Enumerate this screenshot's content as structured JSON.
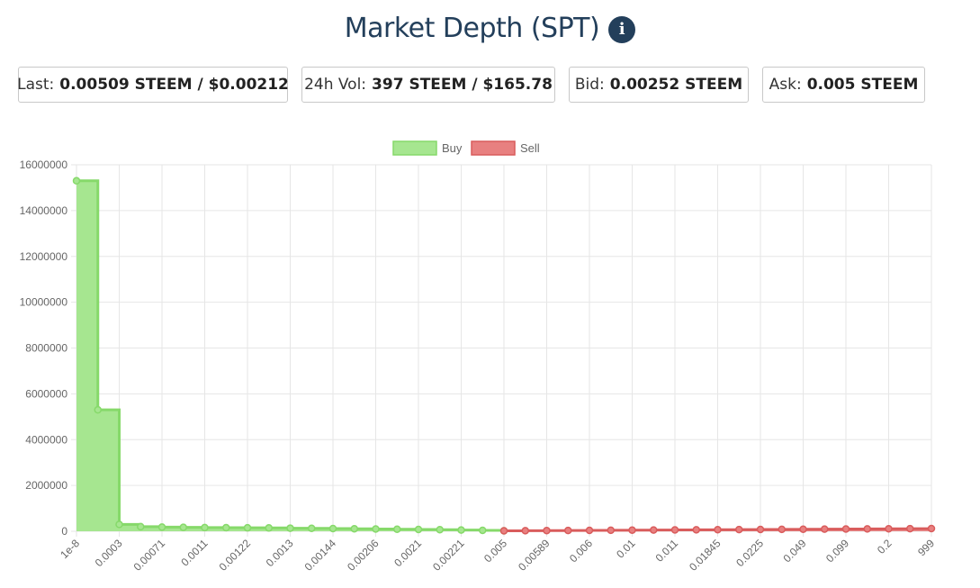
{
  "header": {
    "title": "Market Depth (SPT)",
    "info_icon": "info-icon"
  },
  "stats": {
    "last": {
      "label": "Last:",
      "value": "0.00509 STEEM / $0.00212"
    },
    "vol": {
      "label": "24h Vol:",
      "value": "397 STEEM / $165.78"
    },
    "bid": {
      "label": "Bid:",
      "value": "0.00252 STEEM"
    },
    "ask": {
      "label": "Ask:",
      "value": "0.005 STEEM"
    }
  },
  "colors": {
    "buy_fill": "#a6e690",
    "buy_line": "#86d96a",
    "sell_fill": "#e88080",
    "sell_line": "#d95c5c",
    "grid": "#e6e6e6",
    "axis_text": "#666666"
  },
  "chart_data": {
    "type": "area",
    "step": true,
    "legend_position": "top",
    "ylim": [
      0,
      16000000
    ],
    "yticks": [
      0,
      2000000,
      4000000,
      6000000,
      8000000,
      10000000,
      12000000,
      14000000,
      16000000
    ],
    "xtick_labels": [
      "1e-8",
      "0.0003",
      "0.00071",
      "0.0011",
      "0.00122",
      "0.0013",
      "0.00144",
      "0.00206",
      "0.0021",
      "0.00221",
      "0.005",
      "0.00589",
      "0.006",
      "0.01",
      "0.011",
      "0.01845",
      "0.0225",
      "0.049",
      "0.099",
      "0.2",
      "999"
    ],
    "num_points": 41,
    "series": [
      {
        "name": "Buy",
        "start_index": 0,
        "values": [
          15300000,
          5300000,
          300000,
          200000,
          180000,
          170000,
          160000,
          155000,
          150000,
          145000,
          135000,
          130000,
          120000,
          110000,
          100000,
          90000,
          80000,
          70000,
          55000,
          40000,
          20000
        ]
      },
      {
        "name": "Sell",
        "start_index": 20,
        "values": [
          20000,
          25000,
          30000,
          35000,
          40000,
          45000,
          50000,
          55000,
          60000,
          65000,
          70000,
          75000,
          80000,
          85000,
          90000,
          95000,
          100000,
          105000,
          110000,
          115000,
          120000
        ]
      }
    ]
  }
}
